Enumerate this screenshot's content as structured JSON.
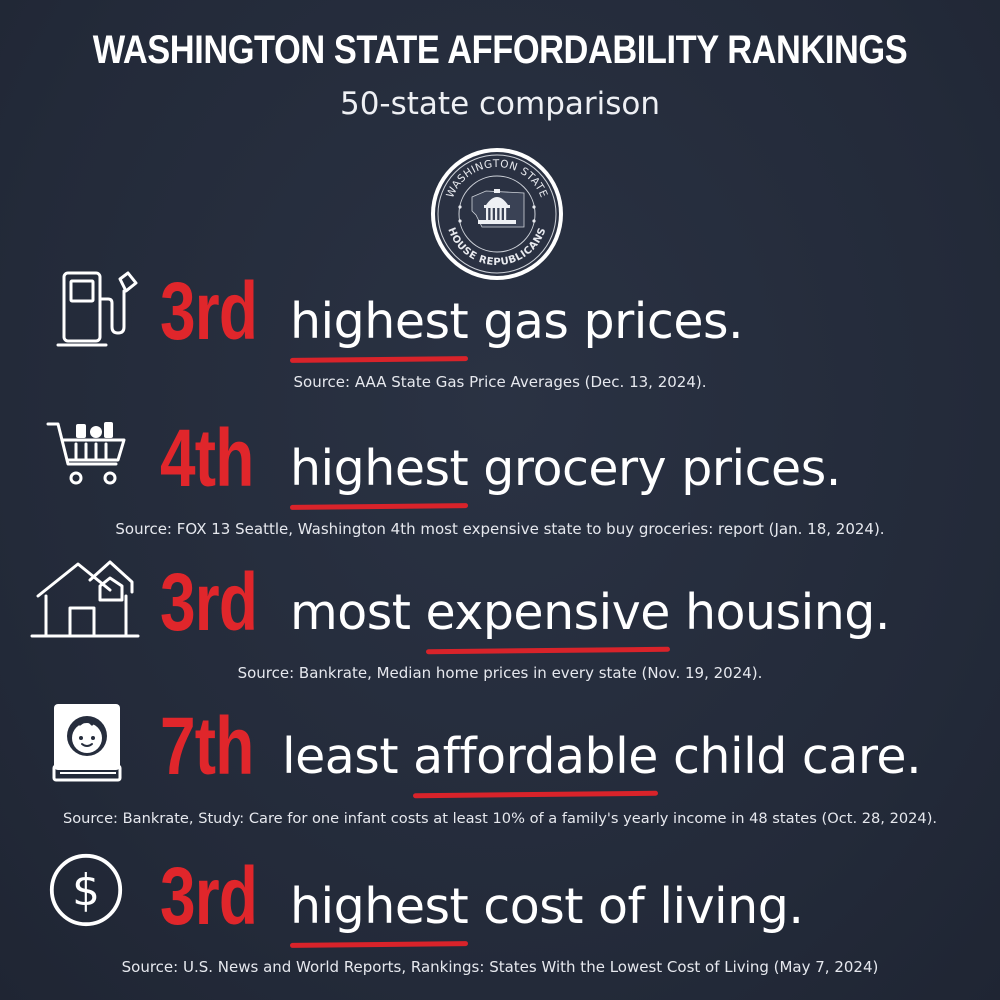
{
  "header": {
    "title": "WASHINGTON STATE AFFORDABILITY RANKINGS",
    "subtitle": "50-state comparison"
  },
  "seal": {
    "top_text": "WASHINGTON STATE",
    "bottom_text": "HOUSE REPUBLICANS"
  },
  "rankings": [
    {
      "icon": "gas-pump-icon",
      "rank": "3rd",
      "underlined": "highest",
      "rest": " gas prices.",
      "source": "Source: AAA State Gas Price Averages (Dec. 13, 2024)."
    },
    {
      "icon": "grocery-cart-icon",
      "rank": "4th",
      "underlined": "highest",
      "rest": " grocery prices.",
      "source": "Source: FOX 13 Seattle, Washington 4th most expensive state to buy groceries: report (Jan. 18, 2024)."
    },
    {
      "icon": "house-icon",
      "rank": "3rd",
      "lead": "most ",
      "underlined": "expensive",
      "rest": " housing.",
      "source": "Source: Bankrate, Median home prices in every state (Nov. 19, 2024)."
    },
    {
      "icon": "baby-book-icon",
      "rank": "7th",
      "lead": "least ",
      "underlined": "affordable",
      "rest": " child care.",
      "source": "Source: Bankrate, Study: Care for one infant costs at least 10% of a family's yearly income in 48 states (Oct. 28, 2024)."
    },
    {
      "icon": "dollar-coin-icon",
      "rank": "3rd",
      "underlined": "highest",
      "rest": " cost of living.",
      "source": "Source: U.S. News and World Reports, Rankings: States With the Lowest Cost of Living (May 7, 2024)"
    }
  ],
  "colors": {
    "background": "#262d3d",
    "accent_red": "#e0262b",
    "text": "#ffffff"
  }
}
